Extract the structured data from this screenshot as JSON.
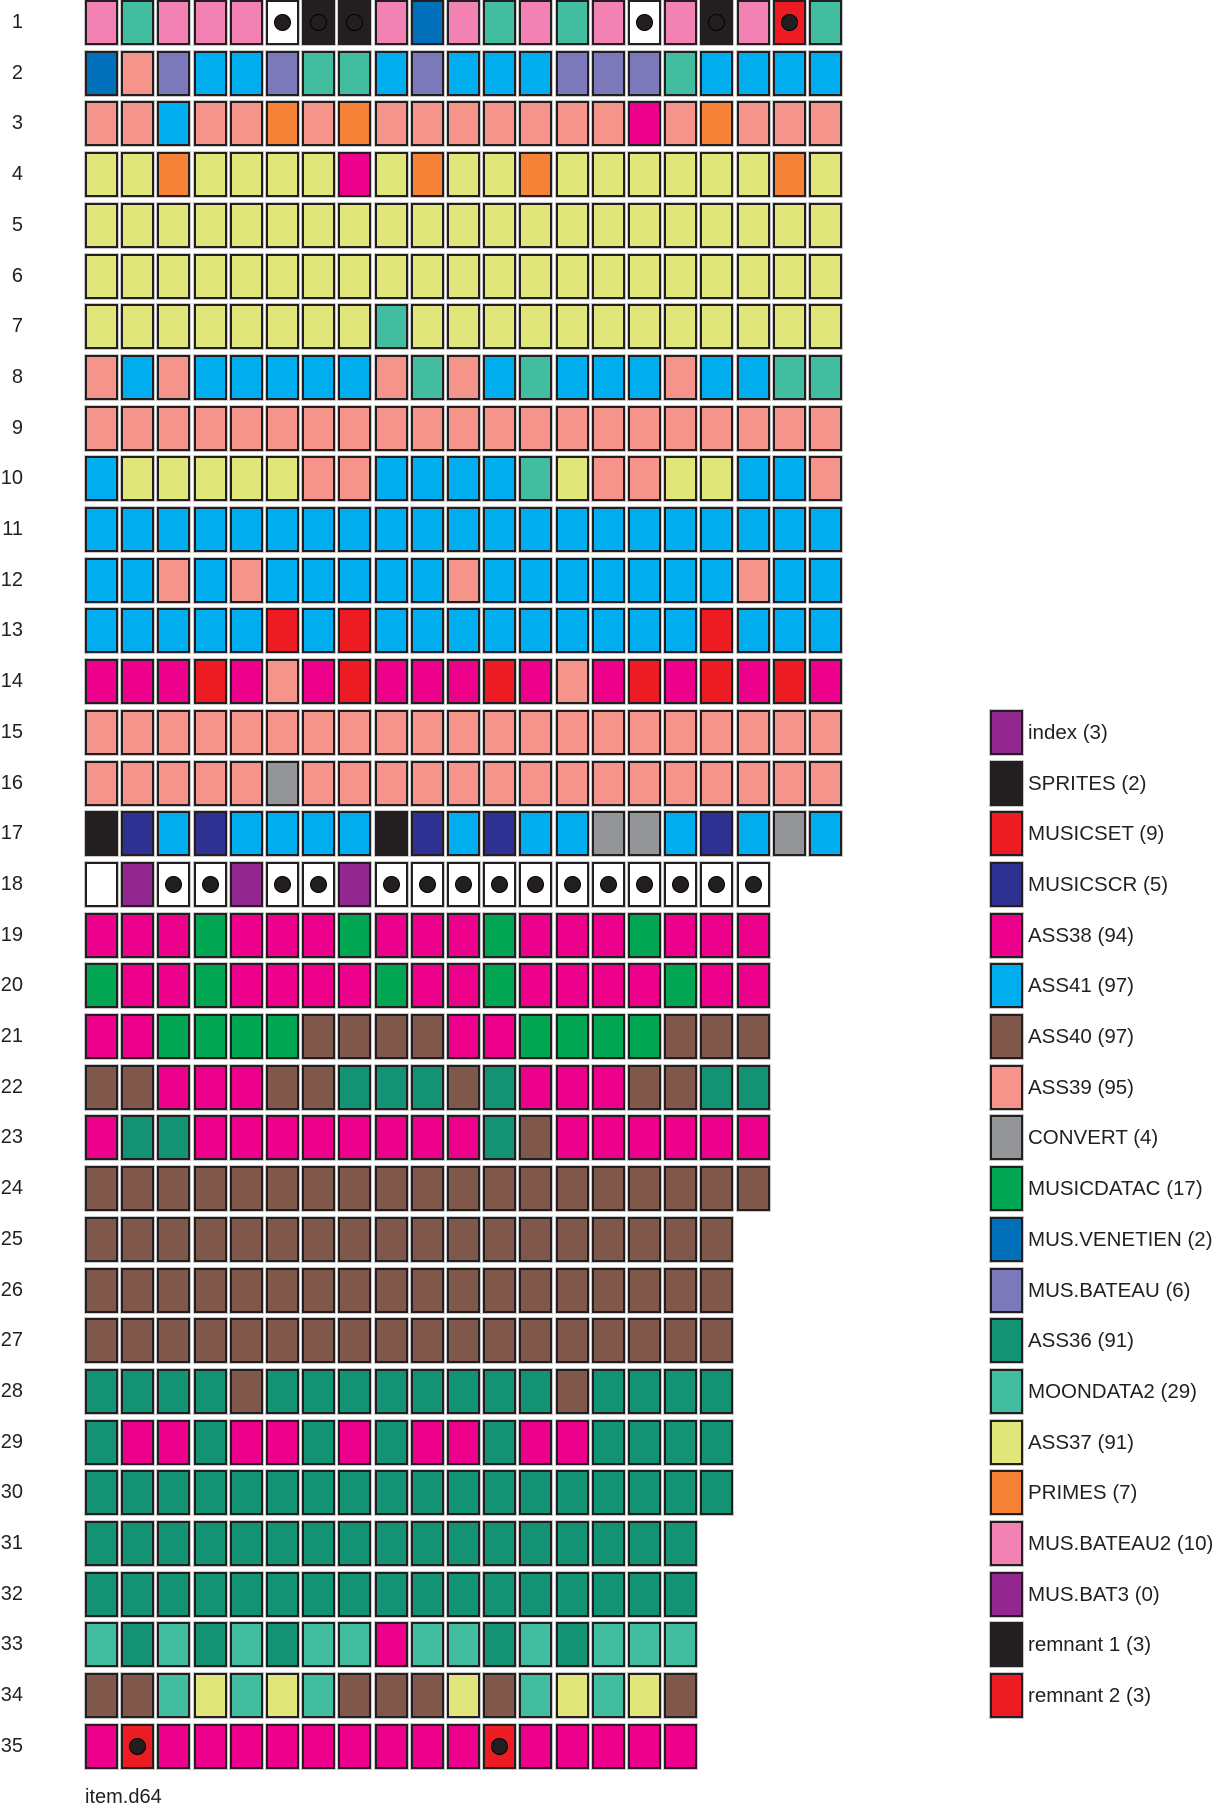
{
  "chart_data": {
    "type": "heatmap",
    "caption": "item.d64",
    "legend_position": "right",
    "empty_color": "#ffffff",
    "categories": [
      {
        "name": "index",
        "count_text": "(3)",
        "color": "#92278f"
      },
      {
        "name": "SPRITES",
        "count_text": "(2)",
        "color": "#231f20"
      },
      {
        "name": "MUSICSET",
        "count_text": "(9)",
        "color": "#ed1c24"
      },
      {
        "name": "MUSICSCR",
        "count_text": "(5)",
        "color": "#2e3192"
      },
      {
        "name": "ASS38",
        "count_text": "(94)",
        "color": "#ec008c"
      },
      {
        "name": "ASS41",
        "count_text": "(97)",
        "color": "#00aeef"
      },
      {
        "name": "ASS40",
        "count_text": "(97)",
        "color": "#7f574b"
      },
      {
        "name": "ASS39",
        "count_text": "(95)",
        "color": "#f4948a"
      },
      {
        "name": "CONVERT",
        "count_text": "(4)",
        "color": "#939598"
      },
      {
        "name": "MUSICDATAC",
        "count_text": "(17)",
        "color": "#00a651"
      },
      {
        "name": "MUS.VENETIEN",
        "count_text": "(2)",
        "color": "#0070ba"
      },
      {
        "name": "MUS.BATEAU",
        "count_text": "(6)",
        "color": "#7b79b9"
      },
      {
        "name": "ASS36",
        "count_text": "(91)",
        "color": "#129374"
      },
      {
        "name": "MOONDATA2",
        "count_text": "(29)",
        "color": "#42bd9f"
      },
      {
        "name": "ASS37",
        "count_text": "(91)",
        "color": "#e0e67a"
      },
      {
        "name": "PRIMES",
        "count_text": "(7)",
        "color": "#f58237"
      },
      {
        "name": "MUS.BATEAU2",
        "count_text": "(10)",
        "color": "#f282b4"
      },
      {
        "name": "MUS.BAT3",
        "count_text": "(0)",
        "color": "#92278f"
      },
      {
        "name": "remnant 1",
        "count_text": "(3)",
        "color": "#231f20"
      },
      {
        "name": "remnant 2",
        "count_text": "(3)",
        "color": "#ed1c24"
      }
    ],
    "rows": [
      {
        "label": "1",
        "cells": [
          "MUS.BATEAU2",
          "MOONDATA2",
          "MUS.BATEAU2",
          "MUS.BATEAU2",
          "MUS.BATEAU2",
          {
            "file": null,
            "mark": "dot"
          },
          {
            "file": "remnant 1",
            "mark": "ring"
          },
          {
            "file": "remnant 1",
            "mark": "ring"
          },
          "MUS.BATEAU2",
          "MUS.VENETIEN",
          "MUS.BATEAU2",
          "MOONDATA2",
          "MUS.BATEAU2",
          "MOONDATA2",
          "MUS.BATEAU2",
          {
            "file": null,
            "mark": "dot"
          },
          "MUS.BATEAU2",
          {
            "file": "remnant 1",
            "mark": "ring"
          },
          "MUS.BATEAU2",
          {
            "file": "remnant 2",
            "mark": "dot"
          },
          "MOONDATA2"
        ]
      },
      {
        "label": "2",
        "cells": [
          "MUS.VENETIEN",
          "ASS39",
          "MUS.BATEAU",
          "ASS41",
          "ASS41",
          "MUS.BATEAU",
          "MOONDATA2",
          "MOONDATA2",
          "ASS41",
          "MUS.BATEAU",
          "ASS41",
          "ASS41",
          "ASS41",
          "MUS.BATEAU",
          "MUS.BATEAU",
          "MUS.BATEAU",
          "MOONDATA2",
          "ASS41",
          "ASS41",
          "ASS41",
          "ASS41"
        ]
      },
      {
        "label": "3",
        "cells": [
          "ASS39",
          "ASS39",
          "ASS41",
          "ASS39",
          "ASS39",
          "PRIMES",
          "ASS39",
          "PRIMES",
          "ASS39",
          "ASS39",
          "ASS39",
          "ASS39",
          "ASS39",
          "ASS39",
          "ASS39",
          "ASS38",
          "ASS39",
          "PRIMES",
          "ASS39",
          "ASS39",
          "ASS39"
        ]
      },
      {
        "label": "4",
        "cells": [
          "ASS37",
          "ASS37",
          "PRIMES",
          "ASS37",
          "ASS37",
          "ASS37",
          "ASS37",
          "ASS38",
          "ASS37",
          "PRIMES",
          "ASS37",
          "ASS37",
          "PRIMES",
          "ASS37",
          "ASS37",
          "ASS37",
          "ASS37",
          "ASS37",
          "ASS37",
          "PRIMES",
          "ASS37"
        ]
      },
      {
        "label": "5",
        "cells": [
          "ASS37",
          "ASS37",
          "ASS37",
          "ASS37",
          "ASS37",
          "ASS37",
          "ASS37",
          "ASS37",
          "ASS37",
          "ASS37",
          "ASS37",
          "ASS37",
          "ASS37",
          "ASS37",
          "ASS37",
          "ASS37",
          "ASS37",
          "ASS37",
          "ASS37",
          "ASS37",
          "ASS37"
        ]
      },
      {
        "label": "6",
        "cells": [
          "ASS37",
          "ASS37",
          "ASS37",
          "ASS37",
          "ASS37",
          "ASS37",
          "ASS37",
          "ASS37",
          "ASS37",
          "ASS37",
          "ASS37",
          "ASS37",
          "ASS37",
          "ASS37",
          "ASS37",
          "ASS37",
          "ASS37",
          "ASS37",
          "ASS37",
          "ASS37",
          "ASS37"
        ]
      },
      {
        "label": "7",
        "cells": [
          "ASS37",
          "ASS37",
          "ASS37",
          "ASS37",
          "ASS37",
          "ASS37",
          "ASS37",
          "ASS37",
          "MOONDATA2",
          "ASS37",
          "ASS37",
          "ASS37",
          "ASS37",
          "ASS37",
          "ASS37",
          "ASS37",
          "ASS37",
          "ASS37",
          "ASS37",
          "ASS37",
          "ASS37"
        ]
      },
      {
        "label": "8",
        "cells": [
          "ASS39",
          "ASS41",
          "ASS39",
          "ASS41",
          "ASS41",
          "ASS41",
          "ASS41",
          "ASS41",
          "ASS39",
          "MOONDATA2",
          "ASS39",
          "ASS41",
          "MOONDATA2",
          "ASS41",
          "ASS41",
          "ASS41",
          "ASS39",
          "ASS41",
          "ASS41",
          "MOONDATA2",
          "MOONDATA2"
        ]
      },
      {
        "label": "9",
        "cells": [
          "ASS39",
          "ASS39",
          "ASS39",
          "ASS39",
          "ASS39",
          "ASS39",
          "ASS39",
          "ASS39",
          "ASS39",
          "ASS39",
          "ASS39",
          "ASS39",
          "ASS39",
          "ASS39",
          "ASS39",
          "ASS39",
          "ASS39",
          "ASS39",
          "ASS39",
          "ASS39",
          "ASS39"
        ]
      },
      {
        "label": "10",
        "cells": [
          "ASS41",
          "ASS37",
          "ASS37",
          "ASS37",
          "ASS37",
          "ASS37",
          "ASS39",
          "ASS39",
          "ASS41",
          "ASS41",
          "ASS41",
          "ASS41",
          "MOONDATA2",
          "ASS37",
          "ASS39",
          "ASS39",
          "ASS37",
          "ASS37",
          "ASS41",
          "ASS41",
          "ASS39"
        ]
      },
      {
        "label": "11",
        "cells": [
          "ASS41",
          "ASS41",
          "ASS41",
          "ASS41",
          "ASS41",
          "ASS41",
          "ASS41",
          "ASS41",
          "ASS41",
          "ASS41",
          "ASS41",
          "ASS41",
          "ASS41",
          "ASS41",
          "ASS41",
          "ASS41",
          "ASS41",
          "ASS41",
          "ASS41",
          "ASS41",
          "ASS41"
        ]
      },
      {
        "label": "12",
        "cells": [
          "ASS41",
          "ASS41",
          "ASS39",
          "ASS41",
          "ASS39",
          "ASS41",
          "ASS41",
          "ASS41",
          "ASS41",
          "ASS41",
          "ASS39",
          "ASS41",
          "ASS41",
          "ASS41",
          "ASS41",
          "ASS41",
          "ASS41",
          "ASS41",
          "ASS39",
          "ASS41",
          "ASS41"
        ]
      },
      {
        "label": "13",
        "cells": [
          "ASS41",
          "ASS41",
          "ASS41",
          "ASS41",
          "ASS41",
          "MUSICSET",
          "ASS41",
          "MUSICSET",
          "ASS41",
          "ASS41",
          "ASS41",
          "ASS41",
          "ASS41",
          "ASS41",
          "ASS41",
          "ASS41",
          "ASS41",
          "MUSICSET",
          "ASS41",
          "ASS41",
          "ASS41"
        ]
      },
      {
        "label": "14",
        "cells": [
          "ASS38",
          "ASS38",
          "ASS38",
          "MUSICSET",
          "ASS38",
          "ASS39",
          "ASS38",
          "MUSICSET",
          "ASS38",
          "ASS38",
          "ASS38",
          "MUSICSET",
          "ASS38",
          "ASS39",
          "ASS38",
          "MUSICSET",
          "ASS38",
          "MUSICSET",
          "ASS38",
          "MUSICSET",
          "ASS38"
        ]
      },
      {
        "label": "15",
        "cells": [
          "ASS39",
          "ASS39",
          "ASS39",
          "ASS39",
          "ASS39",
          "ASS39",
          "ASS39",
          "ASS39",
          "ASS39",
          "ASS39",
          "ASS39",
          "ASS39",
          "ASS39",
          "ASS39",
          "ASS39",
          "ASS39",
          "ASS39",
          "ASS39",
          "ASS39",
          "ASS39",
          "ASS39"
        ]
      },
      {
        "label": "16",
        "cells": [
          "ASS39",
          "ASS39",
          "ASS39",
          "ASS39",
          "ASS39",
          "CONVERT",
          "ASS39",
          "ASS39",
          "ASS39",
          "ASS39",
          "ASS39",
          "ASS39",
          "ASS39",
          "ASS39",
          "ASS39",
          "ASS39",
          "ASS39",
          "ASS39",
          "ASS39",
          "ASS39",
          "ASS39"
        ]
      },
      {
        "label": "17",
        "cells": [
          "SPRITES",
          "MUSICSCR",
          "ASS41",
          "MUSICSCR",
          "ASS41",
          "ASS41",
          "ASS41",
          "ASS41",
          "SPRITES",
          "MUSICSCR",
          "ASS41",
          "MUSICSCR",
          "ASS41",
          "ASS41",
          "CONVERT",
          "CONVERT",
          "ASS41",
          "MUSICSCR",
          "ASS41",
          "CONVERT",
          "ASS41"
        ]
      },
      {
        "label": "18",
        "cells": [
          null,
          "index",
          {
            "file": null,
            "mark": "dot"
          },
          {
            "file": null,
            "mark": "dot"
          },
          "index",
          {
            "file": null,
            "mark": "dot"
          },
          {
            "file": null,
            "mark": "dot"
          },
          "index",
          {
            "file": null,
            "mark": "dot"
          },
          {
            "file": null,
            "mark": "dot"
          },
          {
            "file": null,
            "mark": "dot"
          },
          {
            "file": null,
            "mark": "dot"
          },
          {
            "file": null,
            "mark": "dot"
          },
          {
            "file": null,
            "mark": "dot"
          },
          {
            "file": null,
            "mark": "dot"
          },
          {
            "file": null,
            "mark": "dot"
          },
          {
            "file": null,
            "mark": "dot"
          },
          {
            "file": null,
            "mark": "dot"
          },
          {
            "file": null,
            "mark": "dot"
          }
        ]
      },
      {
        "label": "19",
        "cells": [
          "ASS38",
          "ASS38",
          "ASS38",
          "MUSICDATAC",
          "ASS38",
          "ASS38",
          "ASS38",
          "MUSICDATAC",
          "ASS38",
          "ASS38",
          "ASS38",
          "MUSICDATAC",
          "ASS38",
          "ASS38",
          "ASS38",
          "MUSICDATAC",
          "ASS38",
          "ASS38",
          "ASS38"
        ]
      },
      {
        "label": "20",
        "cells": [
          "MUSICDATAC",
          "ASS38",
          "ASS38",
          "MUSICDATAC",
          "ASS38",
          "ASS38",
          "ASS38",
          "ASS38",
          "MUSICDATAC",
          "ASS38",
          "ASS38",
          "MUSICDATAC",
          "ASS38",
          "ASS38",
          "ASS38",
          "ASS38",
          "MUSICDATAC",
          "ASS38",
          "ASS38"
        ]
      },
      {
        "label": "21",
        "cells": [
          "ASS38",
          "ASS38",
          "MUSICDATAC",
          "MUSICDATAC",
          "MUSICDATAC",
          "MUSICDATAC",
          "ASS40",
          "ASS40",
          "ASS40",
          "ASS40",
          "ASS38",
          "ASS38",
          "MUSICDATAC",
          "MUSICDATAC",
          "MUSICDATAC",
          "MUSICDATAC",
          "ASS40",
          "ASS40",
          "ASS40"
        ]
      },
      {
        "label": "22",
        "cells": [
          "ASS40",
          "ASS40",
          "ASS38",
          "ASS38",
          "ASS38",
          "ASS40",
          "ASS40",
          "ASS36",
          "ASS36",
          "ASS36",
          "ASS40",
          "ASS36",
          "ASS38",
          "ASS38",
          "ASS38",
          "ASS40",
          "ASS40",
          "ASS36",
          "ASS36"
        ]
      },
      {
        "label": "23",
        "cells": [
          "ASS38",
          "ASS36",
          "ASS36",
          "ASS38",
          "ASS38",
          "ASS38",
          "ASS38",
          "ASS38",
          "ASS38",
          "ASS38",
          "ASS38",
          "ASS36",
          "ASS40",
          "ASS38",
          "ASS38",
          "ASS38",
          "ASS38",
          "ASS38",
          "ASS38"
        ]
      },
      {
        "label": "24",
        "cells": [
          "ASS40",
          "ASS40",
          "ASS40",
          "ASS40",
          "ASS40",
          "ASS40",
          "ASS40",
          "ASS40",
          "ASS40",
          "ASS40",
          "ASS40",
          "ASS40",
          "ASS40",
          "ASS40",
          "ASS40",
          "ASS40",
          "ASS40",
          "ASS40",
          "ASS40"
        ]
      },
      {
        "label": "25",
        "cells": [
          "ASS40",
          "ASS40",
          "ASS40",
          "ASS40",
          "ASS40",
          "ASS40",
          "ASS40",
          "ASS40",
          "ASS40",
          "ASS40",
          "ASS40",
          "ASS40",
          "ASS40",
          "ASS40",
          "ASS40",
          "ASS40",
          "ASS40",
          "ASS40"
        ]
      },
      {
        "label": "26",
        "cells": [
          "ASS40",
          "ASS40",
          "ASS40",
          "ASS40",
          "ASS40",
          "ASS40",
          "ASS40",
          "ASS40",
          "ASS40",
          "ASS40",
          "ASS40",
          "ASS40",
          "ASS40",
          "ASS40",
          "ASS40",
          "ASS40",
          "ASS40",
          "ASS40"
        ]
      },
      {
        "label": "27",
        "cells": [
          "ASS40",
          "ASS40",
          "ASS40",
          "ASS40",
          "ASS40",
          "ASS40",
          "ASS40",
          "ASS40",
          "ASS40",
          "ASS40",
          "ASS40",
          "ASS40",
          "ASS40",
          "ASS40",
          "ASS40",
          "ASS40",
          "ASS40",
          "ASS40"
        ]
      },
      {
        "label": "28",
        "cells": [
          "ASS36",
          "ASS36",
          "ASS36",
          "ASS36",
          "ASS40",
          "ASS36",
          "ASS36",
          "ASS36",
          "ASS36",
          "ASS36",
          "ASS36",
          "ASS36",
          "ASS36",
          "ASS40",
          "ASS36",
          "ASS36",
          "ASS36",
          "ASS36"
        ]
      },
      {
        "label": "29",
        "cells": [
          "ASS36",
          "ASS38",
          "ASS38",
          "ASS36",
          "ASS38",
          "ASS38",
          "ASS36",
          "ASS38",
          "ASS36",
          "ASS38",
          "ASS38",
          "ASS36",
          "ASS38",
          "ASS38",
          "ASS36",
          "ASS36",
          "ASS36",
          "ASS36"
        ]
      },
      {
        "label": "30",
        "cells": [
          "ASS36",
          "ASS36",
          "ASS36",
          "ASS36",
          "ASS36",
          "ASS36",
          "ASS36",
          "ASS36",
          "ASS36",
          "ASS36",
          "ASS36",
          "ASS36",
          "ASS36",
          "ASS36",
          "ASS36",
          "ASS36",
          "ASS36",
          "ASS36"
        ]
      },
      {
        "label": "31",
        "cells": [
          "ASS36",
          "ASS36",
          "ASS36",
          "ASS36",
          "ASS36",
          "ASS36",
          "ASS36",
          "ASS36",
          "ASS36",
          "ASS36",
          "ASS36",
          "ASS36",
          "ASS36",
          "ASS36",
          "ASS36",
          "ASS36",
          "ASS36"
        ]
      },
      {
        "label": "32",
        "cells": [
          "ASS36",
          "ASS36",
          "ASS36",
          "ASS36",
          "ASS36",
          "ASS36",
          "ASS36",
          "ASS36",
          "ASS36",
          "ASS36",
          "ASS36",
          "ASS36",
          "ASS36",
          "ASS36",
          "ASS36",
          "ASS36",
          "ASS36"
        ]
      },
      {
        "label": "33",
        "cells": [
          "MOONDATA2",
          "ASS36",
          "MOONDATA2",
          "ASS36",
          "MOONDATA2",
          "ASS36",
          "MOONDATA2",
          "MOONDATA2",
          "ASS38",
          "MOONDATA2",
          "MOONDATA2",
          "ASS36",
          "MOONDATA2",
          "ASS36",
          "MOONDATA2",
          "MOONDATA2",
          "MOONDATA2"
        ]
      },
      {
        "label": "34",
        "cells": [
          "ASS40",
          "ASS40",
          "MOONDATA2",
          "ASS37",
          "MOONDATA2",
          "ASS37",
          "MOONDATA2",
          "ASS40",
          "ASS40",
          "ASS40",
          "ASS37",
          "ASS40",
          "MOONDATA2",
          "ASS37",
          "MOONDATA2",
          "ASS37",
          "ASS40"
        ]
      },
      {
        "label": "35",
        "cells": [
          "ASS38",
          {
            "file": "remnant 2",
            "mark": "dot"
          },
          "ASS38",
          "ASS38",
          "ASS38",
          "ASS38",
          "ASS38",
          "ASS38",
          "ASS38",
          "ASS38",
          "ASS38",
          {
            "file": "remnant 2",
            "mark": "dot"
          },
          "ASS38",
          "ASS38",
          "ASS38",
          "ASS38",
          "ASS38"
        ]
      }
    ]
  }
}
